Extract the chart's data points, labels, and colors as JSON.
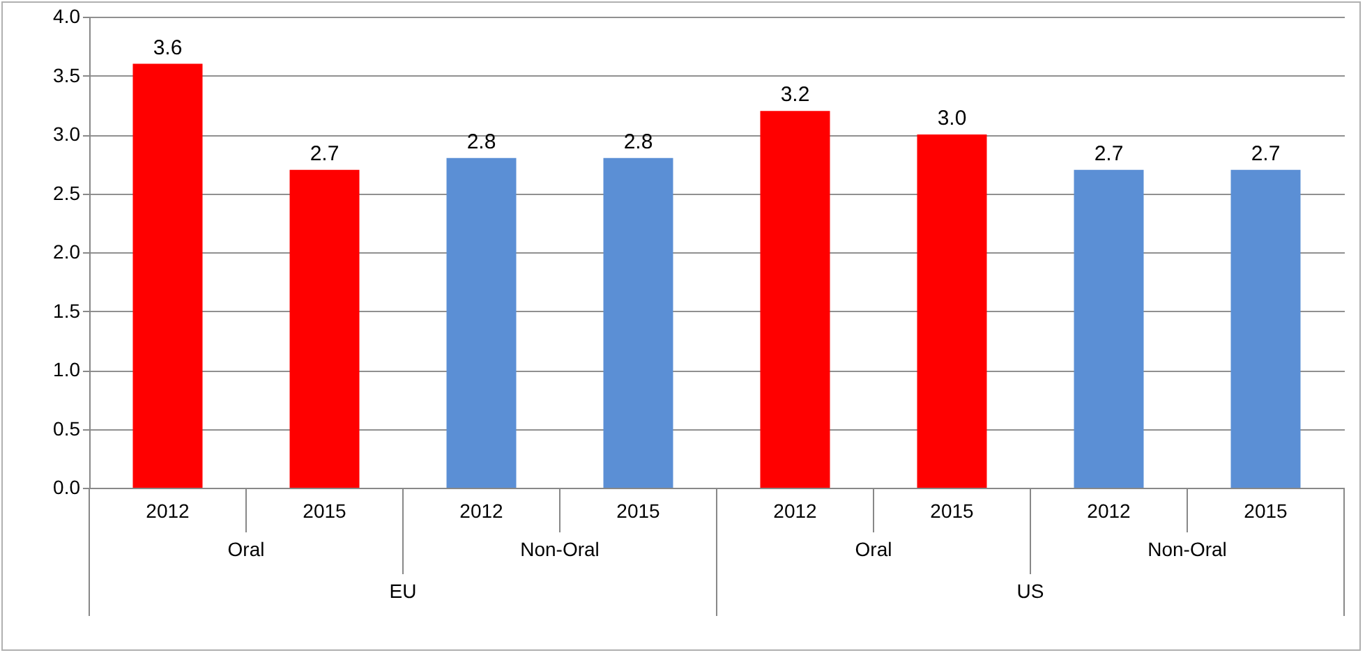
{
  "chart_data": {
    "type": "bar",
    "categories": [
      "2012",
      "2015",
      "2012",
      "2015",
      "2012",
      "2015",
      "2012",
      "2015"
    ],
    "values": [
      3.6,
      2.7,
      2.8,
      2.8,
      3.2,
      3.0,
      2.7,
      2.7
    ],
    "colors": [
      "#ff0000",
      "#ff0000",
      "#5b8fd5",
      "#5b8fd5",
      "#ff0000",
      "#ff0000",
      "#5b8fd5",
      "#5b8fd5"
    ],
    "ylim": [
      0,
      4
    ],
    "yticks": [
      {
        "value": 0,
        "label": "0.0"
      },
      {
        "value": 0.5,
        "label": "0.5"
      },
      {
        "value": 1,
        "label": "1.0"
      },
      {
        "value": 1.5,
        "label": "1.5"
      },
      {
        "value": 2,
        "label": "2.0"
      },
      {
        "value": 2.5,
        "label": "2.5"
      },
      {
        "value": 3,
        "label": "3.0"
      },
      {
        "value": 3.5,
        "label": "3.5"
      },
      {
        "value": 4,
        "label": "4.0"
      }
    ],
    "value_labels": [
      "3.6",
      "2.7",
      "2.8",
      "2.8",
      "3.2",
      "3.0",
      "2.7",
      "2.7"
    ],
    "grid": "y",
    "annotations": [
      "Oral",
      "Non-Oral",
      "Oral",
      "Non-Oral",
      "EU",
      "US"
    ]
  }
}
